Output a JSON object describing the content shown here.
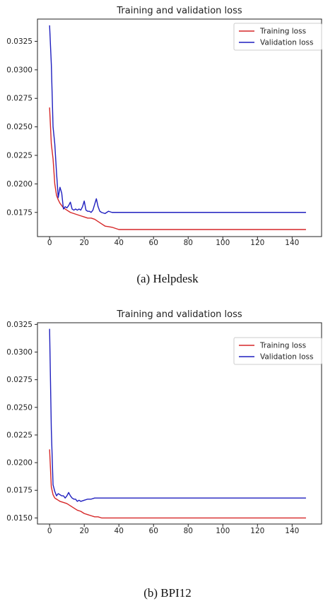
{
  "chart_data": [
    {
      "type": "line",
      "title": "Training and validation loss",
      "xlabel": "",
      "ylabel": "",
      "xlim": [
        -7,
        157
      ],
      "ylim": [
        0.01538,
        0.03445
      ],
      "x_ticks": [
        0,
        20,
        40,
        60,
        80,
        100,
        120,
        140
      ],
      "y_ticks": [
        0.0175,
        0.02,
        0.0225,
        0.025,
        0.0275,
        0.03,
        0.0325
      ],
      "y_tick_labels": [
        "0.0175",
        "0.0200",
        "0.0225",
        "0.0250",
        "0.0275",
        "0.0300",
        "0.0325"
      ],
      "grid": false,
      "legend_position": "top-right",
      "caption": "(a) Helpdesk",
      "series": [
        {
          "name": "Training loss",
          "color": "#d62728",
          "points": [
            [
              0,
              0.0267
            ],
            [
              1,
              0.0235
            ],
            [
              2,
              0.0222
            ],
            [
              3,
              0.02
            ],
            [
              4,
              0.019
            ],
            [
              5,
              0.0186
            ],
            [
              6,
              0.0183
            ],
            [
              7,
              0.0181
            ],
            [
              8,
              0.0179
            ],
            [
              10,
              0.0177
            ],
            [
              12,
              0.0175
            ],
            [
              14,
              0.0174
            ],
            [
              16,
              0.0173
            ],
            [
              18,
              0.0172
            ],
            [
              20,
              0.0171
            ],
            [
              22,
              0.017
            ],
            [
              24,
              0.017
            ],
            [
              26,
              0.0169
            ],
            [
              28,
              0.0167
            ],
            [
              30,
              0.0165
            ],
            [
              32,
              0.0163
            ],
            [
              34,
              0.01625
            ],
            [
              36,
              0.0162
            ],
            [
              38,
              0.0161
            ],
            [
              40,
              0.016
            ],
            [
              60,
              0.016
            ],
            [
              80,
              0.016
            ],
            [
              100,
              0.016
            ],
            [
              120,
              0.016
            ],
            [
              140,
              0.016
            ],
            [
              148,
              0.016
            ]
          ]
        },
        {
          "name": "Validation loss",
          "color": "#1f1fbf",
          "points": [
            [
              0,
              0.0339
            ],
            [
              1,
              0.0305
            ],
            [
              2,
              0.025
            ],
            [
              3,
              0.0235
            ],
            [
              4,
              0.021
            ],
            [
              5,
              0.0188
            ],
            [
              6,
              0.0197
            ],
            [
              7,
              0.0192
            ],
            [
              8,
              0.0178
            ],
            [
              9,
              0.018
            ],
            [
              10,
              0.0179
            ],
            [
              11,
              0.0181
            ],
            [
              12,
              0.0184
            ],
            [
              13,
              0.0178
            ],
            [
              14,
              0.0177
            ],
            [
              15,
              0.0178
            ],
            [
              16,
              0.0177
            ],
            [
              17,
              0.0178
            ],
            [
              18,
              0.0177
            ],
            [
              19,
              0.018
            ],
            [
              20,
              0.0185
            ],
            [
              21,
              0.0177
            ],
            [
              22,
              0.0176
            ],
            [
              23,
              0.0176
            ],
            [
              24,
              0.0175
            ],
            [
              25,
              0.0177
            ],
            [
              26,
              0.0182
            ],
            [
              27,
              0.0187
            ],
            [
              28,
              0.018
            ],
            [
              29,
              0.0176
            ],
            [
              30,
              0.0175
            ],
            [
              32,
              0.0174
            ],
            [
              34,
              0.0176
            ],
            [
              36,
              0.0175
            ],
            [
              40,
              0.0175
            ],
            [
              60,
              0.0175
            ],
            [
              80,
              0.0175
            ],
            [
              100,
              0.0175
            ],
            [
              120,
              0.0175
            ],
            [
              140,
              0.0175
            ],
            [
              148,
              0.0175
            ]
          ]
        }
      ]
    },
    {
      "type": "line",
      "title": "Training and validation loss",
      "xlabel": "",
      "ylabel": "",
      "xlim": [
        -7,
        157
      ],
      "ylim": [
        0.01445,
        0.03265
      ],
      "x_ticks": [
        0,
        20,
        40,
        60,
        80,
        100,
        120,
        140
      ],
      "y_ticks": [
        0.015,
        0.0175,
        0.02,
        0.0225,
        0.025,
        0.0275,
        0.03,
        0.0325
      ],
      "y_tick_labels": [
        "0.0150",
        "0.0175",
        "0.0200",
        "0.0225",
        "0.0250",
        "0.0275",
        "0.0300",
        "0.0325"
      ],
      "grid": false,
      "legend_position": "top-right",
      "caption": "(b) BPI12",
      "series": [
        {
          "name": "Training loss",
          "color": "#d62728",
          "points": [
            [
              0,
              0.0212
            ],
            [
              1,
              0.0178
            ],
            [
              2,
              0.0171
            ],
            [
              3,
              0.0168
            ],
            [
              4,
              0.0167
            ],
            [
              5,
              0.0166
            ],
            [
              6,
              0.0165
            ],
            [
              8,
              0.0164
            ],
            [
              10,
              0.0163
            ],
            [
              12,
              0.0161
            ],
            [
              14,
              0.0159
            ],
            [
              16,
              0.0157
            ],
            [
              18,
              0.0156
            ],
            [
              20,
              0.0154
            ],
            [
              22,
              0.0153
            ],
            [
              24,
              0.0152
            ],
            [
              26,
              0.0151
            ],
            [
              28,
              0.0151
            ],
            [
              30,
              0.015
            ],
            [
              40,
              0.015
            ],
            [
              60,
              0.015
            ],
            [
              80,
              0.015
            ],
            [
              100,
              0.015
            ],
            [
              120,
              0.015
            ],
            [
              140,
              0.015
            ],
            [
              148,
              0.015
            ]
          ]
        },
        {
          "name": "Validation loss",
          "color": "#1f1fbf",
          "points": [
            [
              0,
              0.0321
            ],
            [
              1,
              0.023
            ],
            [
              2,
              0.018
            ],
            [
              3,
              0.0174
            ],
            [
              4,
              0.017
            ],
            [
              5,
              0.0172
            ],
            [
              6,
              0.0171
            ],
            [
              7,
              0.017
            ],
            [
              8,
              0.017
            ],
            [
              9,
              0.0168
            ],
            [
              10,
              0.017
            ],
            [
              11,
              0.0173
            ],
            [
              12,
              0.017
            ],
            [
              13,
              0.0168
            ],
            [
              14,
              0.0167
            ],
            [
              15,
              0.0167
            ],
            [
              16,
              0.0165
            ],
            [
              17,
              0.0166
            ],
            [
              18,
              0.0165
            ],
            [
              20,
              0.0166
            ],
            [
              22,
              0.0167
            ],
            [
              24,
              0.0167
            ],
            [
              26,
              0.0168
            ],
            [
              28,
              0.0168
            ],
            [
              30,
              0.0168
            ],
            [
              40,
              0.0168
            ],
            [
              60,
              0.0168
            ],
            [
              80,
              0.0168
            ],
            [
              100,
              0.0168
            ],
            [
              120,
              0.0168
            ],
            [
              140,
              0.0168
            ],
            [
              148,
              0.0168
            ]
          ]
        }
      ]
    }
  ]
}
